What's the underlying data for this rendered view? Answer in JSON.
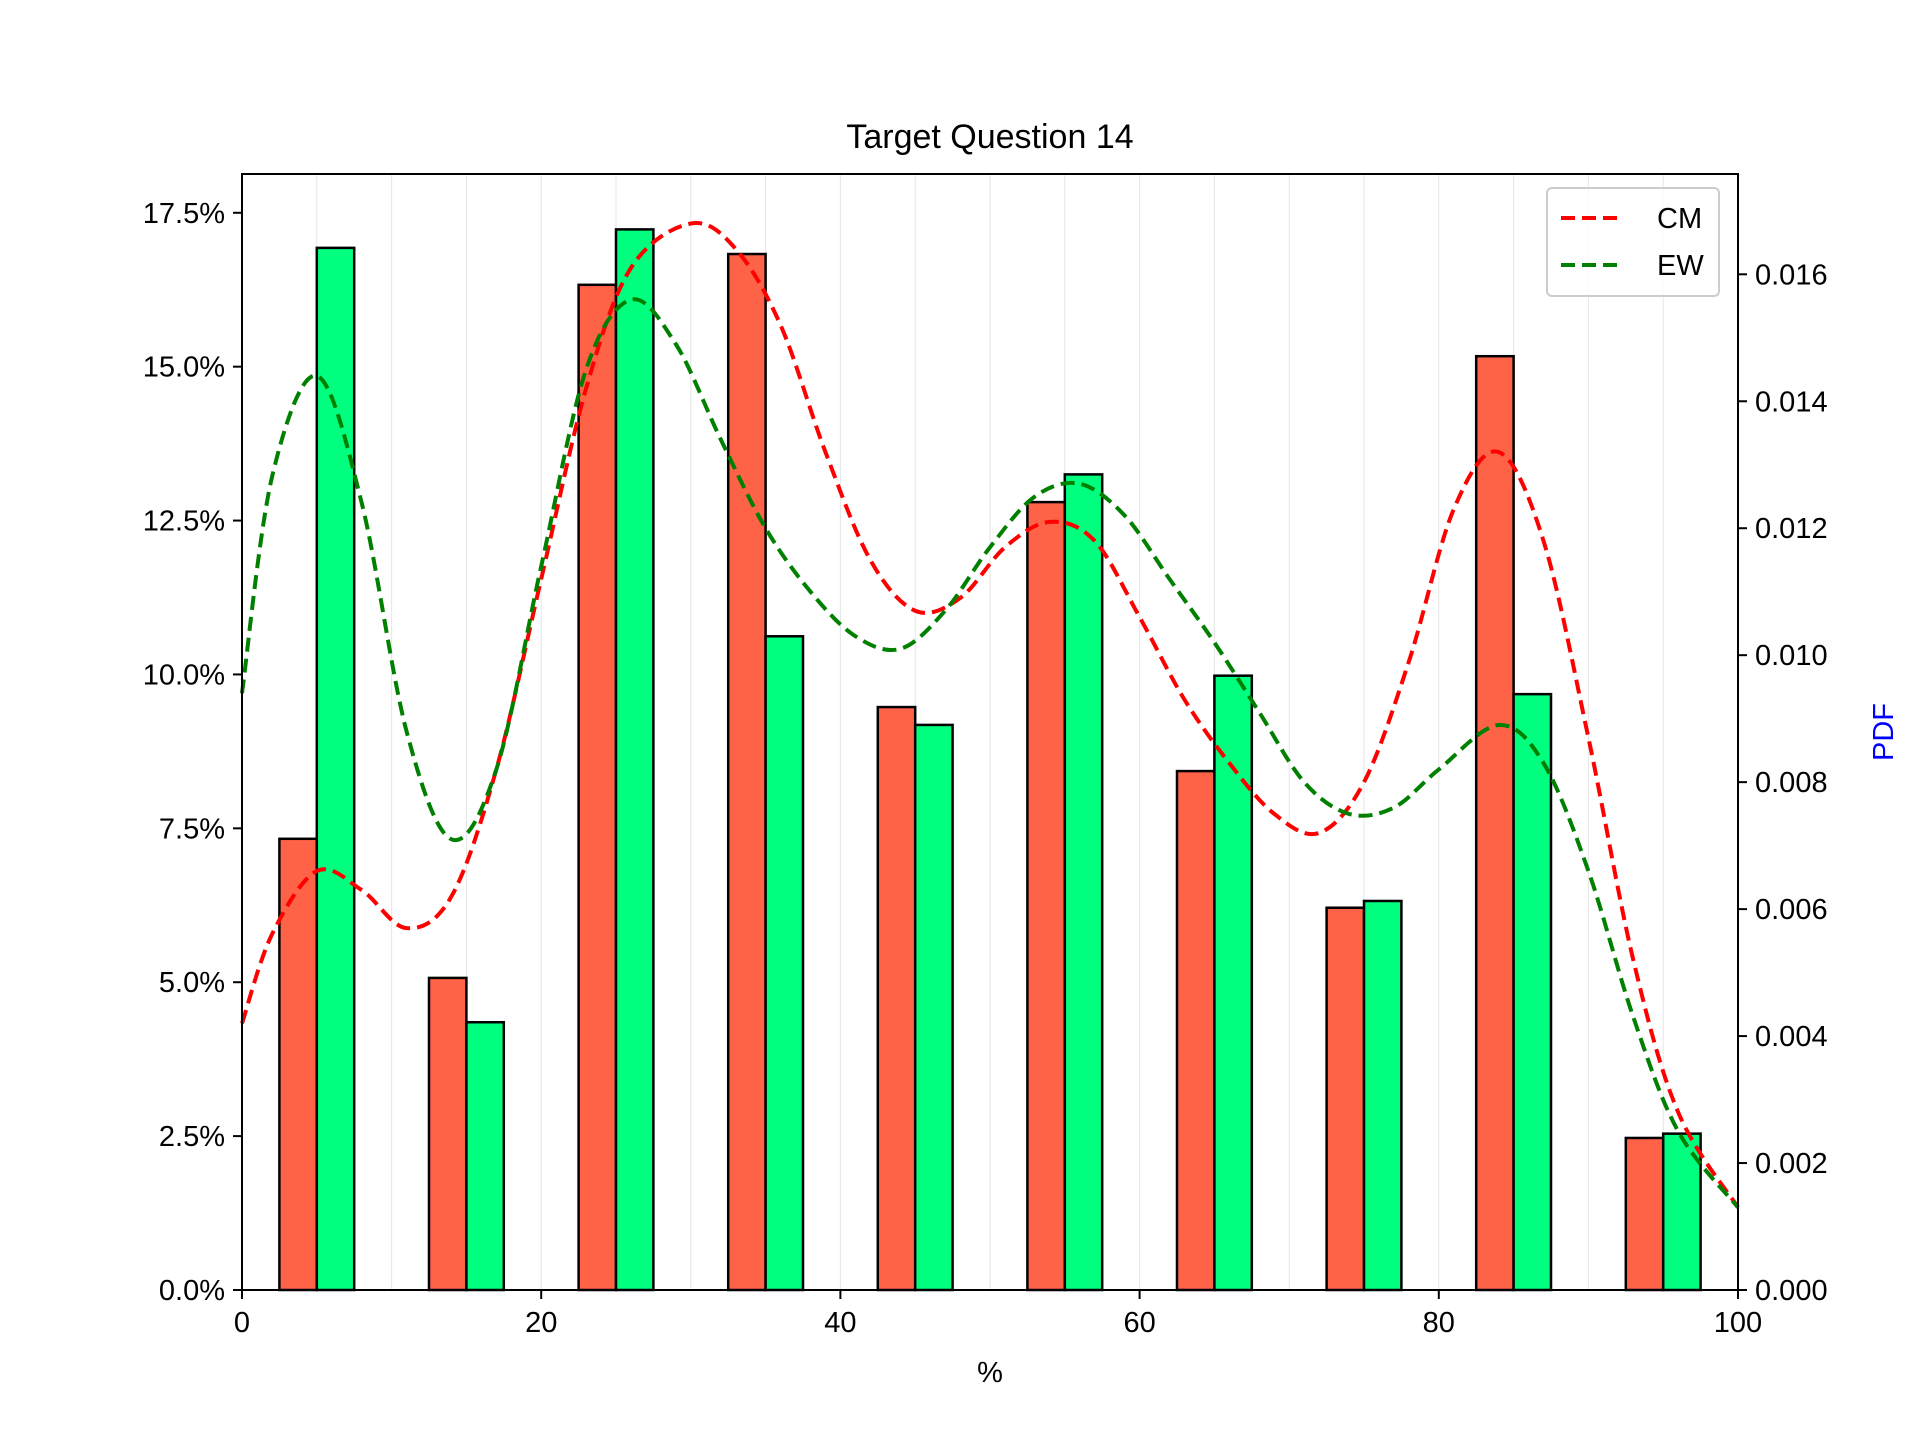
{
  "chart_data": {
    "type": "bar",
    "title": "Target Question 14",
    "xlabel": "%",
    "ylabel": "",
    "ylabel_right": "PDF",
    "xlim": [
      0,
      100
    ],
    "ylim": [
      0,
      0.1813
    ],
    "ylim_right": [
      0,
      0.01758
    ],
    "x_ticks": [
      0,
      20,
      40,
      60,
      80,
      100
    ],
    "y_ticks": [
      "0.0%",
      "2.5%",
      "5.0%",
      "7.5%",
      "10.0%",
      "12.5%",
      "15.0%",
      "17.5%"
    ],
    "y_tick_values": [
      0,
      0.025,
      0.05,
      0.075,
      0.1,
      0.125,
      0.15,
      0.175
    ],
    "y_right_ticks": [
      "0.000",
      "0.002",
      "0.004",
      "0.006",
      "0.008",
      "0.010",
      "0.012",
      "0.014",
      "0.016"
    ],
    "y_right_tick_values": [
      0,
      0.002,
      0.004,
      0.006,
      0.008,
      0.01,
      0.012,
      0.014,
      0.016
    ],
    "bar_groups_x": [
      5,
      15,
      25,
      35,
      45,
      55,
      65,
      75,
      85,
      95
    ],
    "bar_width": 2.5,
    "series": [
      {
        "name": "",
        "color": "#FF6347",
        "values": [
          0.0733,
          0.0507,
          0.1633,
          0.1683,
          0.0947,
          0.128,
          0.0843,
          0.0621,
          0.1517,
          0.0247
        ]
      },
      {
        "name": "",
        "color": "#00FF7F",
        "values": [
          0.1693,
          0.0435,
          0.1723,
          0.1062,
          0.0918,
          0.1325,
          0.0998,
          0.0632,
          0.0968,
          0.0254
        ]
      }
    ],
    "lines": [
      {
        "name": "CM",
        "color": "#FF0000",
        "style": "dashed",
        "axis": "right",
        "points": [
          [
            0,
            0.0042
          ],
          [
            2,
            0.0056
          ],
          [
            5,
            0.0066
          ],
          [
            8,
            0.0063
          ],
          [
            11,
            0.0057
          ],
          [
            14,
            0.0062
          ],
          [
            17,
            0.0082
          ],
          [
            20,
            0.0112
          ],
          [
            23,
            0.0142
          ],
          [
            26,
            0.0161
          ],
          [
            30,
            0.0168
          ],
          [
            33,
            0.0164
          ],
          [
            36,
            0.0152
          ],
          [
            39,
            0.0132
          ],
          [
            42,
            0.0115
          ],
          [
            45,
            0.0107
          ],
          [
            48,
            0.0109
          ],
          [
            51,
            0.0117
          ],
          [
            54,
            0.0121
          ],
          [
            57,
            0.0118
          ],
          [
            60,
            0.0106
          ],
          [
            63,
            0.0093
          ],
          [
            66,
            0.0083
          ],
          [
            69,
            0.0075
          ],
          [
            72,
            0.0072
          ],
          [
            75,
            0.008
          ],
          [
            78,
            0.0099
          ],
          [
            81,
            0.0123
          ],
          [
            84,
            0.0132
          ],
          [
            87,
            0.0118
          ],
          [
            90,
            0.0087
          ],
          [
            93,
            0.0052
          ],
          [
            96,
            0.0028
          ],
          [
            100,
            0.0013
          ]
        ]
      },
      {
        "name": "EW",
        "color": "#008000",
        "style": "dashed",
        "axis": "right",
        "points": [
          [
            0,
            0.0094
          ],
          [
            2,
            0.0128
          ],
          [
            5,
            0.0144
          ],
          [
            8,
            0.0124
          ],
          [
            11,
            0.0088
          ],
          [
            14,
            0.0071
          ],
          [
            17,
            0.0082
          ],
          [
            20,
            0.0114
          ],
          [
            23,
            0.0145
          ],
          [
            26,
            0.0156
          ],
          [
            29,
            0.0149
          ],
          [
            32,
            0.0134
          ],
          [
            35,
            0.012
          ],
          [
            38,
            0.011
          ],
          [
            41,
            0.0103
          ],
          [
            44,
            0.0101
          ],
          [
            47,
            0.0107
          ],
          [
            50,
            0.0117
          ],
          [
            53,
            0.0125
          ],
          [
            56,
            0.0127
          ],
          [
            59,
            0.0122
          ],
          [
            62,
            0.0112
          ],
          [
            65,
            0.0102
          ],
          [
            68,
            0.0091
          ],
          [
            71,
            0.008
          ],
          [
            74,
            0.0075
          ],
          [
            77,
            0.0076
          ],
          [
            80,
            0.0082
          ],
          [
            84,
            0.0089
          ],
          [
            87,
            0.0083
          ],
          [
            90,
            0.0066
          ],
          [
            93,
            0.0043
          ],
          [
            96,
            0.0025
          ],
          [
            100,
            0.0013
          ]
        ]
      }
    ],
    "legend": {
      "placement": "top-right",
      "entries": [
        "CM",
        "EW"
      ]
    },
    "grid": "vertical-minor",
    "right_label_color": "#0000FF"
  }
}
